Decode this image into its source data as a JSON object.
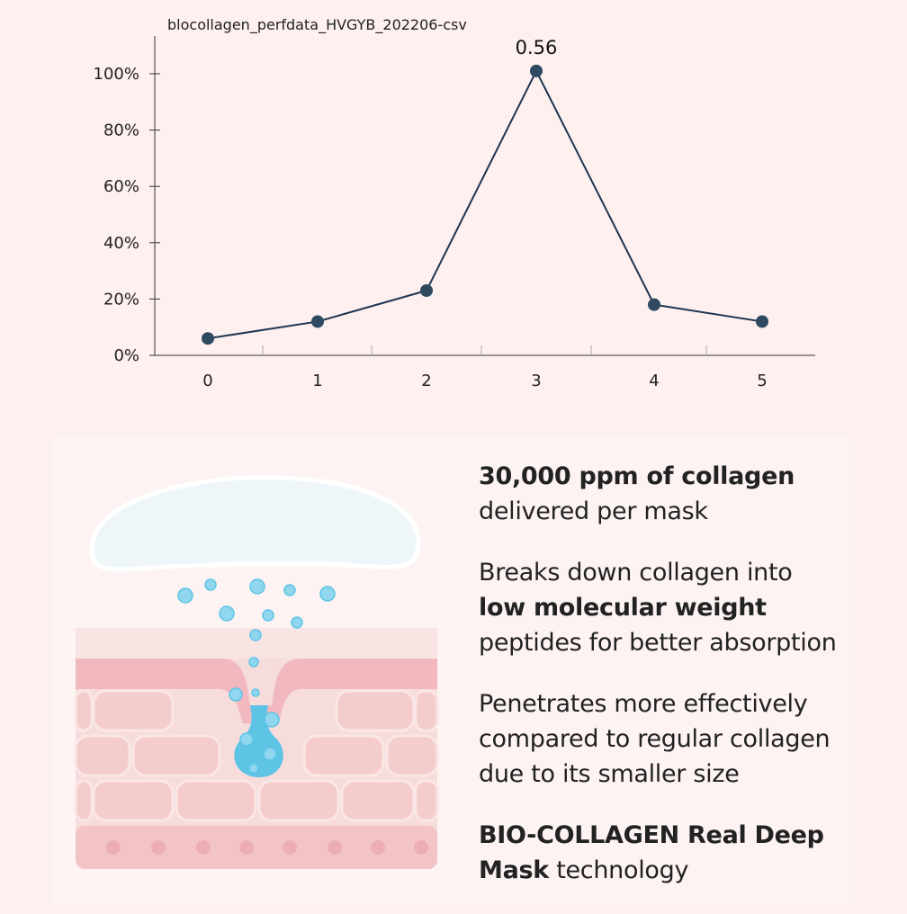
{
  "chart_data": {
    "type": "line",
    "file_label": "blocollagen_perfdata_HVGYB_202206-csv",
    "x": [
      0,
      1,
      2,
      3,
      4,
      5
    ],
    "x_tick_labels": [
      "0",
      "1",
      "2",
      "3",
      "4",
      "5"
    ],
    "y_percent": [
      6,
      12,
      23,
      101,
      18,
      12
    ],
    "y_tick_labels": [
      "0%",
      "20%",
      "40%",
      "60%",
      "80%",
      "100%"
    ],
    "ylim": [
      0,
      100
    ],
    "annotation": {
      "x": 3,
      "text": "0.56"
    },
    "line_color": "#1f3550",
    "marker_color": "#2f4a60",
    "grid": false
  },
  "copy": {
    "p1_bold": "30,000 ppm of collagen",
    "p1_rest": "delivered per mask",
    "p2_a": "Breaks down collagen into",
    "p2_bold": "low molecular weight",
    "p2_c": "peptides for better absorption",
    "p3": "Penetrates more effectively compared to regular collagen due to its smaller size",
    "p4_bold_a": "BIO-COLLAGEN Real Deep",
    "p4_bold_b": "Mask",
    "p4_rest": " technology"
  },
  "illustration": {
    "mask_color": "#eef6fa",
    "drop_color": "#5ec4e6",
    "skin_top_color": "#f2b8c0",
    "cell_color": "#f9dcdc"
  }
}
